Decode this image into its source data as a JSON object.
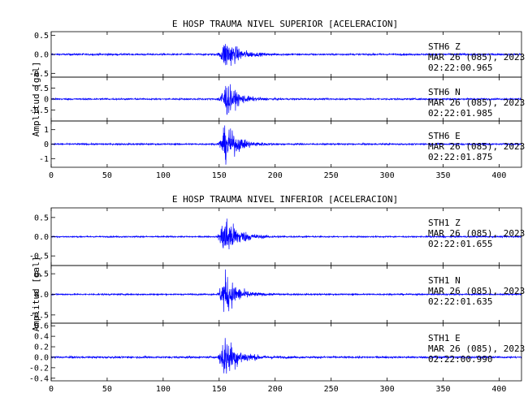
{
  "chart_data": [
    {
      "type": "line",
      "title": "E HOSP TRAUMA NIVEL SUPERIOR [ACELERACION]",
      "ylabel": "Amplitud  [gal]",
      "xlim": [
        0,
        420
      ],
      "x_ticks": [
        "0",
        "50",
        "100",
        "150",
        "200",
        "250",
        "300",
        "350",
        "400"
      ],
      "series_color": "#0000ff",
      "panels": [
        {
          "station": "STH6",
          "component": "Z",
          "date": "MAR 26 (085), 2023",
          "time": "02:22:00.965",
          "ylim": [
            -0.6,
            0.6
          ],
          "y_ticks": [
            0.5,
            0.0,
            -0.5
          ],
          "y_tick_labels": [
            "0.5",
            "0.0",
            "-0.5"
          ],
          "noise": 0.025,
          "peak": 0.48,
          "onset": 148,
          "peak_time": 156,
          "decay": 11
        },
        {
          "station": "STH6",
          "component": "N",
          "date": "MAR 26 (085), 2023",
          "time": "02:22:01.985",
          "ylim": [
            -1.0,
            1.0
          ],
          "y_ticks": [
            0.5,
            0.0,
            -0.5
          ],
          "y_tick_labels": [
            "0.5",
            "0",
            "-0.5"
          ],
          "noise": 0.04,
          "peak": 0.9,
          "onset": 148,
          "peak_time": 156,
          "decay": 10
        },
        {
          "station": "STH6",
          "component": "E",
          "date": "MAR 26 (085), 2023",
          "time": "02:22:01.875",
          "ylim": [
            -1.6,
            1.6
          ],
          "y_ticks": [
            1,
            0,
            -1
          ],
          "y_tick_labels": [
            "1",
            "0",
            "-1"
          ],
          "noise": 0.06,
          "peak": 1.45,
          "onset": 148,
          "peak_time": 156,
          "decay": 11
        }
      ]
    },
    {
      "type": "line",
      "title": "E HOSP TRAUMA NIVEL INFERIOR [ACELERACION]",
      "ylabel": "Amplitud  [gal]",
      "xlim": [
        0,
        420
      ],
      "x_ticks": [
        "0",
        "50",
        "100",
        "150",
        "200",
        "250",
        "300",
        "350",
        "400"
      ],
      "series_color": "#0000ff",
      "panels": [
        {
          "station": "STH1",
          "component": "Z",
          "date": "MAR 26 (085), 2023",
          "time": "02:22:01.655",
          "ylim": [
            -0.75,
            0.75
          ],
          "y_ticks": [
            0.5,
            0.0,
            -0.5
          ],
          "y_tick_labels": [
            "0.5",
            "0.0",
            "-0.5"
          ],
          "noise": 0.02,
          "peak": 0.7,
          "onset": 148,
          "peak_time": 155,
          "decay": 11
        },
        {
          "station": "STH1",
          "component": "N",
          "date": "MAR 26 (085), 2023",
          "time": "02:22:01.635",
          "ylim": [
            -0.7,
            0.7
          ],
          "y_ticks": [
            0.5,
            0.0,
            -0.5
          ],
          "y_tick_labels": [
            "0.5",
            "0.0",
            "-0.5"
          ],
          "noise": 0.02,
          "peak": 0.62,
          "onset": 148,
          "peak_time": 155,
          "decay": 10
        },
        {
          "station": "STH1",
          "component": "E",
          "date": "MAR 26 (085), 2023",
          "time": "02:22:00.990",
          "ylim": [
            -0.45,
            0.65
          ],
          "y_ticks": [
            0.6,
            0.4,
            0.2,
            0.0,
            -0.2,
            -0.4
          ],
          "y_tick_labels": [
            "0.6",
            "0.4",
            "0.2",
            "0.0",
            "-0.2",
            "-0.4"
          ],
          "noise": 0.02,
          "peak": 0.5,
          "onset": 148,
          "peak_time": 155,
          "decay": 11
        }
      ]
    }
  ]
}
